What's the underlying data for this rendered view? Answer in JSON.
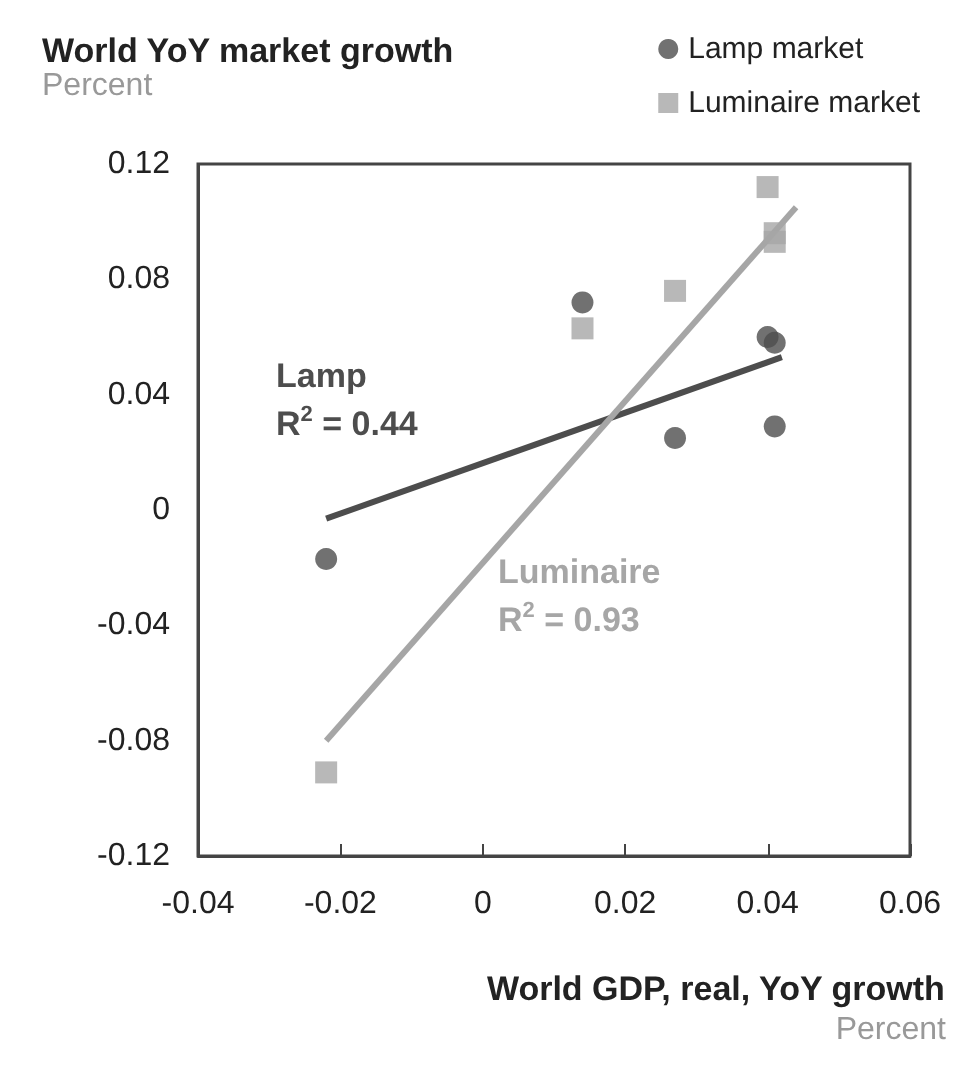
{
  "chart_data": {
    "type": "scatter",
    "title": "World YoY market growth",
    "ylabel": "Percent",
    "xlabel": "World GDP, real, YoY growth",
    "xlim": [
      -0.04,
      0.06
    ],
    "xticks": [
      -0.04,
      -0.02,
      0,
      0.02,
      0.04,
      0.06
    ],
    "ylim": [
      -0.12,
      0.12
    ],
    "yticks": [
      -0.12,
      -0.08,
      -0.04,
      0,
      0.04,
      0.08,
      0.12
    ],
    "grid": false,
    "legend": "top right",
    "series": [
      {
        "name": "Lamp market",
        "color": "#4d4d4d",
        "marker": "circle",
        "x": [
          -0.022,
          0.014,
          0.027,
          0.04,
          0.041,
          0.041
        ],
        "values": [
          -0.017,
          0.072,
          0.025,
          0.06,
          0.058,
          0.029
        ]
      },
      {
        "name": "Luminaire market",
        "color": "#a6a6a6",
        "marker": "square",
        "x": [
          -0.022,
          0.014,
          0.027,
          0.04,
          0.041,
          0.041
        ],
        "values": [
          -0.091,
          0.063,
          0.076,
          0.112,
          0.096,
          0.093
        ]
      },
      {
        "type": "line",
        "color": "#4d4d4d",
        "x": [
          -0.022,
          0.042
        ],
        "values": [
          -0.003,
          0.053
        ]
      },
      {
        "type": "line",
        "color": "#a6a6a6",
        "x": [
          -0.022,
          0.044
        ],
        "values": [
          -0.08,
          0.105
        ]
      }
    ],
    "annotations": [
      "Lamp\nR$^{2}$ = 0.44",
      "Luminaire\nR$^{2}$ = 0.93",
      "Percent"
    ]
  }
}
